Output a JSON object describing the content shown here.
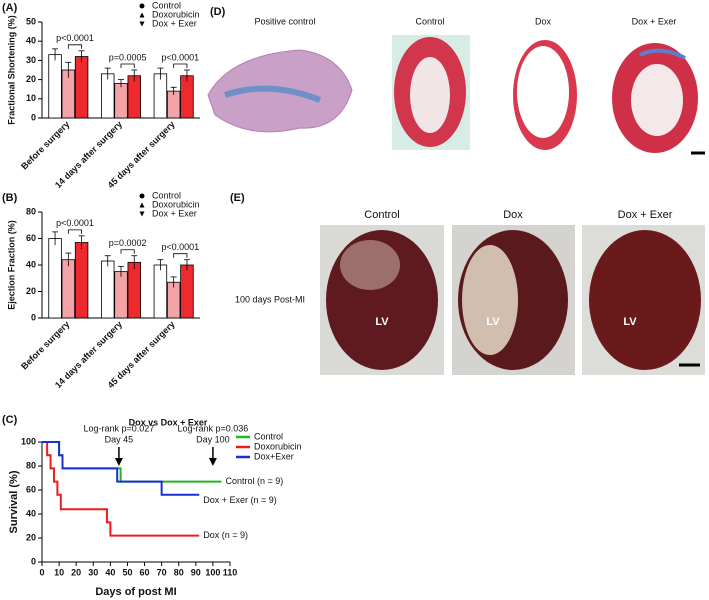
{
  "chart_data": [
    {
      "type": "bar",
      "panel_label": "(A)",
      "y_label": "Fractional Shortening (%)",
      "categories": [
        "Before surgery",
        "14 days after surgery",
        "45 days after surgery"
      ],
      "series": [
        {
          "name": "Control",
          "color": "#ffffff",
          "marker": "circle",
          "values": [
            33,
            23,
            23
          ],
          "errors": [
            3,
            3,
            3
          ]
        },
        {
          "name": "Doxorubicin",
          "color": "#f4a3a6",
          "marker": "triangle-up",
          "values": [
            25,
            18,
            14
          ],
          "errors": [
            4,
            2,
            2
          ]
        },
        {
          "name": "Dox + Exer",
          "color": "#ee2a2f",
          "marker": "triangle-down",
          "values": [
            32,
            22,
            22
          ],
          "errors": [
            3,
            3,
            3
          ]
        }
      ],
      "p_values": [
        "p<0.0001",
        "p=0.0005",
        "p<0.0001"
      ],
      "ylim": [
        0,
        50
      ],
      "yticks": [
        0,
        10,
        20,
        30,
        40,
        50
      ]
    },
    {
      "type": "bar",
      "panel_label": "(B)",
      "y_label": "Ejection Fraction (%)",
      "categories": [
        "Before surgery",
        "14 days after surgery",
        "45 days after surgery"
      ],
      "series": [
        {
          "name": "Control",
          "color": "#ffffff",
          "marker": "circle",
          "values": [
            60,
            43,
            40
          ],
          "errors": [
            5,
            4,
            4
          ]
        },
        {
          "name": "Doxorubicin",
          "color": "#f4a3a6",
          "marker": "triangle-up",
          "values": [
            44,
            35,
            27
          ],
          "errors": [
            5,
            4,
            4
          ]
        },
        {
          "name": "Dox + Exer",
          "color": "#ee2a2f",
          "marker": "triangle-down",
          "values": [
            57,
            42,
            40
          ],
          "errors": [
            5,
            5,
            4
          ]
        }
      ],
      "p_values": [
        "p<0.0001",
        "p=0.0002",
        "p<0.0001"
      ],
      "ylim": [
        0,
        80
      ],
      "yticks": [
        0,
        20,
        40,
        60,
        80
      ]
    },
    {
      "type": "step",
      "panel_label": "(C)",
      "subtitle": "Dox vs Dox + Exer",
      "x_label": "Days of post MI",
      "y_label": "Survival (%)",
      "series": [
        {
          "name": "Control",
          "color": "#22b522",
          "end_label": "Control  (n = 9)",
          "x": [
            0,
            10,
            12,
            46,
            105
          ],
          "values": [
            100,
            89,
            78,
            67,
            67
          ]
        },
        {
          "name": "Doxorubicin",
          "color": "#ee1c1c",
          "end_label": "Dox (n = 9)",
          "x": [
            0,
            3,
            5,
            7,
            9,
            11,
            38,
            40,
            92
          ],
          "values": [
            100,
            89,
            78,
            67,
            56,
            44,
            33,
            22,
            22
          ]
        },
        {
          "name": "Dox+Exer",
          "color": "#1a2fd6",
          "end_label": "Dox + Exer (n = 9)",
          "x": [
            0,
            10,
            12,
            44,
            70,
            92
          ],
          "values": [
            100,
            89,
            78,
            67,
            56,
            56
          ]
        }
      ],
      "annotations": [
        {
          "x": 45,
          "lines": [
            "Log-rank p=0.027",
            "Day 45"
          ]
        },
        {
          "x": 100,
          "lines": [
            "Log-rank p=0.036",
            "Day 100"
          ]
        }
      ],
      "xlim": [
        0,
        110
      ],
      "xticks": [
        0,
        10,
        20,
        30,
        40,
        50,
        60,
        70,
        80,
        90,
        100,
        110
      ],
      "ylim": [
        0,
        100
      ],
      "yticks": [
        0,
        20,
        40,
        60,
        80,
        100
      ]
    }
  ],
  "images": [
    {
      "panel_label": "(D)",
      "labels": [
        "Positive control",
        "Control",
        "Dox",
        "Dox + Exer"
      ]
    },
    {
      "panel_label": "(E)",
      "labels": [
        "Control",
        "Dox",
        "Dox + Exer"
      ],
      "row_label": "100 days Post-MI",
      "region_label": "LV"
    }
  ]
}
